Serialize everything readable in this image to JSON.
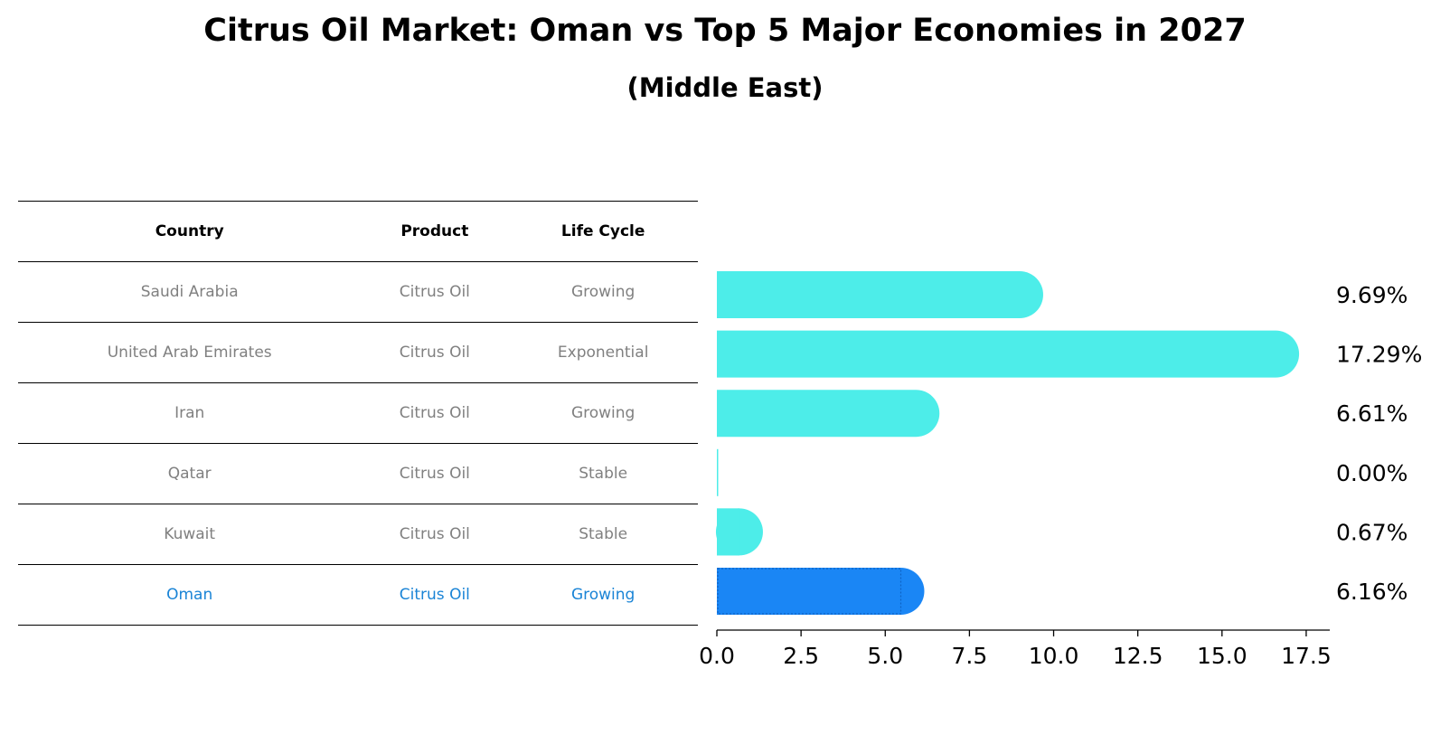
{
  "chart_data": {
    "type": "bar",
    "orientation": "horizontal",
    "title": "Citrus Oil Market: Oman vs Top 5 Major Economies in 2027",
    "subtitle": "(Middle East)",
    "table": {
      "columns": [
        "Country",
        "Product",
        "Life Cycle"
      ],
      "rows": [
        [
          "Saudi Arabia",
          "Citrus Oil",
          "Growing"
        ],
        [
          "United Arab Emirates",
          "Citrus Oil",
          "Exponential"
        ],
        [
          "Iran",
          "Citrus Oil",
          "Growing"
        ],
        [
          "Qatar",
          "Citrus Oil",
          "Stable"
        ],
        [
          "Kuwait",
          "Citrus Oil",
          "Stable"
        ],
        [
          "Oman",
          "Citrus Oil",
          "Growing"
        ]
      ],
      "highlight_row": "Oman"
    },
    "categories": [
      "Saudi Arabia",
      "United Arab Emirates",
      "Iran",
      "Qatar",
      "Kuwait",
      "Oman"
    ],
    "values": [
      9.69,
      17.29,
      6.61,
      0.0,
      0.67,
      6.16
    ],
    "value_labels": [
      "9.69%",
      "17.29%",
      "6.61%",
      "0.00%",
      "0.67%",
      "6.16%"
    ],
    "xlim": [
      0,
      18.2
    ],
    "xticks": [
      0,
      2.5,
      5,
      7.5,
      10,
      12.5,
      15,
      17.5
    ],
    "xtick_labels": [
      "0.0",
      "2.5",
      "5.0",
      "7.5",
      "10.0",
      "12.5",
      "15.0",
      "17.5"
    ],
    "colors": {
      "bar": "#4dede9",
      "highlight_bar": "#1a86f5",
      "highlight_text": "#1a84d6",
      "muted_text": "#808080"
    },
    "grid": false,
    "legend": "none"
  }
}
